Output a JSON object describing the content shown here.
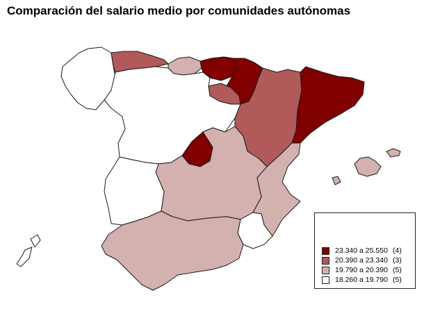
{
  "title": "Comparación del salario medio por comunidades autónomas",
  "colors": {
    "class1": "#800000",
    "class2": "#b05a5a",
    "class3": "#d2b1ae",
    "class4": "#ffffff",
    "border": "#1a1a1a"
  },
  "legend": [
    {
      "range": "23.340 a 25.550",
      "count": "(4)",
      "color": "#800000"
    },
    {
      "range": "20.390 a 23.340",
      "count": "(3)",
      "color": "#b05a5a"
    },
    {
      "range": "19.790 a 20.390",
      "count": "(5)",
      "color": "#d2b1ae"
    },
    {
      "range": "18.260 a 19.790",
      "count": "(5)",
      "color": "#ffffff"
    }
  ]
}
